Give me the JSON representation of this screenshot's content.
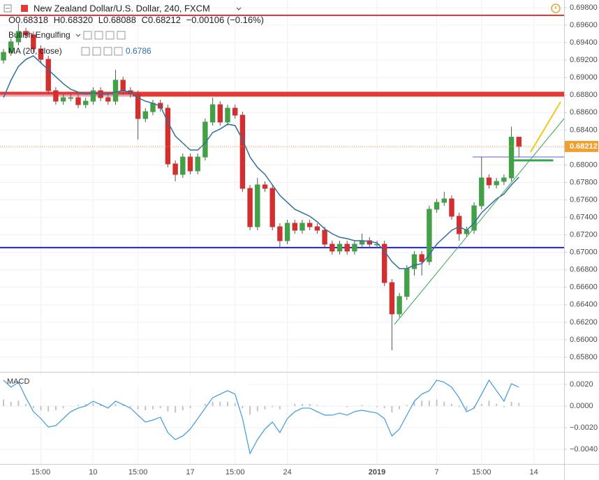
{
  "chart_data": [
    {
      "type": "candlestick",
      "title": "New Zealand Dollar/U.S. Dollar, 240, FXCM",
      "legend_values": [
        "O0.68318",
        "H0.68320",
        "L0.68088",
        "C0.68212",
        "−0.00106 (−0.16%)"
      ],
      "studies": [
        "Bullish Engulfing",
        "MA (20, close)"
      ],
      "up_color": "#43a047",
      "down_color": "#d32f2f",
      "ohlc": [
        [
          0.692,
          0.69329,
          0.6916,
          0.69289
        ],
        [
          0.69289,
          0.69449,
          0.69249,
          0.69409
        ],
        [
          0.69409,
          0.6962,
          0.69369,
          0.69529
        ],
        [
          0.69529,
          0.69569,
          0.69449,
          0.69489
        ],
        [
          0.69489,
          0.69529,
          0.69289,
          0.69329
        ],
        [
          0.69329,
          0.69369,
          0.69169,
          0.69209
        ],
        [
          0.69209,
          0.69249,
          0.6881,
          0.6885
        ],
        [
          0.6885,
          0.6889,
          0.6869,
          0.6873
        ],
        [
          0.6873,
          0.6881,
          0.6869,
          0.6877
        ],
        [
          0.6877,
          0.6881,
          0.6873,
          0.6877
        ],
        [
          0.6877,
          0.6881,
          0.6865,
          0.6869
        ],
        [
          0.6869,
          0.6877,
          0.6865,
          0.6873
        ],
        [
          0.6873,
          0.6889,
          0.6869,
          0.6885
        ],
        [
          0.6885,
          0.6889,
          0.6873,
          0.6877
        ],
        [
          0.6877,
          0.6881,
          0.6869,
          0.6873
        ],
        [
          0.6873,
          0.6909,
          0.6869,
          0.6897
        ],
        [
          0.6897,
          0.6901,
          0.6881,
          0.6885
        ],
        [
          0.6885,
          0.6889,
          0.6877,
          0.6881
        ],
        [
          0.6881,
          0.6885,
          0.6829,
          0.68531
        ],
        [
          0.68531,
          0.6865,
          0.68491,
          0.6861
        ],
        [
          0.6861,
          0.68746,
          0.6857,
          0.68706
        ],
        [
          0.68706,
          0.68746,
          0.6861,
          0.6865
        ],
        [
          0.6865,
          0.6869,
          0.67972,
          0.68012
        ],
        [
          0.68012,
          0.68052,
          0.67812,
          0.67892
        ],
        [
          0.67892,
          0.68131,
          0.67852,
          0.68091
        ],
        [
          0.68091,
          0.68131,
          0.67892,
          0.67932
        ],
        [
          0.67932,
          0.68131,
          0.67892,
          0.68091
        ],
        [
          0.68091,
          0.68531,
          0.68052,
          0.68491
        ],
        [
          0.68491,
          0.6877,
          0.68451,
          0.6869
        ],
        [
          0.6869,
          0.6873,
          0.68451,
          0.68491
        ],
        [
          0.68491,
          0.6869,
          0.68451,
          0.6865
        ],
        [
          0.6865,
          0.6869,
          0.6853,
          0.6857
        ],
        [
          0.6857,
          0.6861,
          0.67692,
          0.67732
        ],
        [
          0.67732,
          0.67772,
          0.67253,
          0.67293
        ],
        [
          0.67293,
          0.67852,
          0.67253,
          0.67772
        ],
        [
          0.67772,
          0.67812,
          0.67692,
          0.67732
        ],
        [
          0.67732,
          0.67772,
          0.67253,
          0.67293
        ],
        [
          0.67293,
          0.67333,
          0.67053,
          0.67133
        ],
        [
          0.67133,
          0.67373,
          0.67093,
          0.67333
        ],
        [
          0.67333,
          0.67373,
          0.67213,
          0.67253
        ],
        [
          0.67253,
          0.67373,
          0.67213,
          0.67333
        ],
        [
          0.67333,
          0.67373,
          0.67253,
          0.67293
        ],
        [
          0.67293,
          0.67333,
          0.67213,
          0.67253
        ],
        [
          0.67253,
          0.67293,
          0.67053,
          0.67093
        ],
        [
          0.67093,
          0.67133,
          0.66974,
          0.67014
        ],
        [
          0.67014,
          0.67133,
          0.66974,
          0.67093
        ],
        [
          0.67093,
          0.67133,
          0.66974,
          0.67014
        ],
        [
          0.67014,
          0.67133,
          0.66974,
          0.67093
        ],
        [
          0.67093,
          0.67213,
          0.67053,
          0.67133
        ],
        [
          0.67133,
          0.67173,
          0.67053,
          0.67093
        ],
        [
          0.67093,
          0.67133,
          0.67053,
          0.67093
        ],
        [
          0.67093,
          0.67133,
          0.66614,
          0.66654
        ],
        [
          0.66654,
          0.66694,
          0.6588,
          0.66295
        ],
        [
          0.66295,
          0.66535,
          0.66255,
          0.66495
        ],
        [
          0.66495,
          0.66854,
          0.66455,
          0.66814
        ],
        [
          0.66814,
          0.67014,
          0.66734,
          0.66974
        ],
        [
          0.66974,
          0.67014,
          0.66734,
          0.66894
        ],
        [
          0.66894,
          0.67533,
          0.66854,
          0.67493
        ],
        [
          0.67493,
          0.67612,
          0.67453,
          0.67572
        ],
        [
          0.67572,
          0.67692,
          0.67532,
          0.67612
        ],
        [
          0.67612,
          0.67652,
          0.67373,
          0.67413
        ],
        [
          0.67413,
          0.67453,
          0.67133,
          0.67213
        ],
        [
          0.67213,
          0.67293,
          0.67173,
          0.67253
        ],
        [
          0.67253,
          0.67573,
          0.67213,
          0.67533
        ],
        [
          0.67533,
          0.68092,
          0.67493,
          0.67852
        ],
        [
          0.67852,
          0.67892,
          0.67732,
          0.67772
        ],
        [
          0.67772,
          0.67852,
          0.67732,
          0.67812
        ],
        [
          0.67812,
          0.67892,
          0.67772,
          0.67852
        ],
        [
          0.67852,
          0.68438,
          0.67812,
          0.68318
        ],
        [
          0.68318,
          0.6832,
          0.68088,
          0.68212
        ]
      ],
      "ma": {
        "color": "#2f6fa0",
        "values": [
          0.6877,
          0.6897,
          0.69129,
          0.69209,
          0.69249,
          0.69169,
          0.69089,
          0.6901,
          0.6893,
          0.68866,
          0.68834,
          0.6881,
          0.68826,
          0.6881,
          0.6881,
          0.68834,
          0.6885,
          0.68834,
          0.6877,
          0.6873,
          0.68706,
          0.68674,
          0.68491,
          0.68331,
          0.68251,
          0.68171,
          0.68171,
          0.68251,
          0.68371,
          0.68411,
          0.68467,
          0.68451,
          0.68291,
          0.68091,
          0.67972,
          0.67892,
          0.67772,
          0.67652,
          0.67572,
          0.67493,
          0.67453,
          0.67413,
          0.67349,
          0.67269,
          0.67213,
          0.67173,
          0.67157,
          0.67133,
          0.67133,
          0.67125,
          0.67109,
          0.67014,
          0.66894,
          0.66814,
          0.66814,
          0.66854,
          0.6687,
          0.66974,
          0.67093,
          0.67173,
          0.67253,
          0.67293,
          0.67253,
          0.67333,
          0.67453,
          0.67533,
          0.67612,
          0.67668,
          0.67772,
          0.6786
        ]
      },
      "levels": [
        {
          "value": 0.69712,
          "color": "#e53935",
          "width": 2
        },
        {
          "value": 0.6881,
          "color": "#e53935",
          "width": 7
        },
        {
          "value": 0.67054,
          "color": "#1a28c0",
          "width": 2
        },
        {
          "value": 0.68091,
          "color": "#6a5acd",
          "width": 1,
          "from": 62.8
        },
        {
          "value": 0.68052,
          "color": "#2eaa4a",
          "width": 3,
          "from": 68.2,
          "to": 73.6
        }
      ],
      "last_price_color": "#f0a030",
      "xlim": [
        -0.47,
        75.05
      ],
      "xticks": [
        {
          "value": 5,
          "label": "15:00"
        },
        {
          "value": 12,
          "label": "10"
        },
        {
          "value": 18,
          "label": "15:00"
        },
        {
          "value": 25,
          "label": "17"
        },
        {
          "value": 31,
          "label": "15:00"
        },
        {
          "value": 38,
          "label": "24"
        },
        {
          "value": 50,
          "label": "2019"
        },
        {
          "value": 58,
          "label": "7"
        },
        {
          "value": 64,
          "label": "15:00"
        },
        {
          "value": 71,
          "label": "14"
        }
      ],
      "ylim": [
        0.65656,
        0.69888
      ],
      "yticks": [
        {
          "value": 0.698,
          "label": "0.69800"
        },
        {
          "value": 0.696,
          "label": "0.69600"
        },
        {
          "value": 0.694,
          "label": "0.69400"
        },
        {
          "value": 0.692,
          "label": "0.69200"
        },
        {
          "value": 0.69,
          "label": "0.69000"
        },
        {
          "value": 0.688,
          "label": "0.68800"
        },
        {
          "value": 0.686,
          "label": "0.68600"
        },
        {
          "value": 0.684,
          "label": "0.68400"
        },
        {
          "value": 0.682,
          "label": "0.68200"
        },
        {
          "value": 0.68,
          "label": "0.68000"
        },
        {
          "value": 0.678,
          "label": "0.67800"
        },
        {
          "value": 0.676,
          "label": "0.67600"
        },
        {
          "value": 0.674,
          "label": "0.67400"
        },
        {
          "value": 0.672,
          "label": "0.67200"
        },
        {
          "value": 0.67,
          "label": "0.67000"
        },
        {
          "value": 0.668,
          "label": "0.66800"
        },
        {
          "value": 0.666,
          "label": "0.66600"
        },
        {
          "value": 0.664,
          "label": "0.66400"
        },
        {
          "value": 0.662,
          "label": "0.66200"
        },
        {
          "value": 0.66,
          "label": "0.66000"
        },
        {
          "value": 0.658,
          "label": "0.65800"
        }
      ],
      "grid": true
    },
    {
      "type": "macd",
      "title": "MACD",
      "macd": {
        "color": "#3c9ae0",
        "values": [
          0.00239,
          0.00174,
          0.00219,
          0.00077,
          -0.00052,
          -0.00116,
          -0.00194,
          -0.00181,
          -0.00116,
          -0.00052,
          -0.00019,
          0,
          0.00045,
          0.00013,
          -0.00019,
          0.00045,
          0.00013,
          -0.00019,
          -0.00084,
          -0.00148,
          -0.00129,
          -0.00103,
          -0.00245,
          -0.0031,
          -0.00277,
          -0.00213,
          -0.00116,
          -0.00019,
          0.00077,
          0.0011,
          0.00142,
          0.0011,
          -0.00116,
          -0.00439,
          -0.0031,
          -0.00213,
          -0.00148,
          -0.00245,
          -0.00116,
          -0.00052,
          -0.00019,
          -0.00019,
          -0.00052,
          -0.00084,
          -0.00084,
          -0.00065,
          -0.00084,
          -0.00052,
          -0.00039,
          -0.00052,
          -0.00065,
          -0.00116,
          -0.00277,
          -0.00213,
          -0.00084,
          0.00045,
          0.0011,
          0.00142,
          0.00239,
          0.00219,
          0.00174,
          0.00077,
          -0.00052,
          -0.00019,
          0.0011,
          0.00239,
          0.00142,
          0.00045,
          0.00206,
          0.00174
        ]
      },
      "histogram": {
        "color": "#c4c4c4",
        "values": [
          0.0006,
          0.0004,
          0.0005,
          0.0002,
          -0.0002,
          -0.0004,
          -0.0005,
          -0.0004,
          -0.0002,
          0,
          0.0001,
          0.0002,
          0.0003,
          0.0002,
          0,
          0.0002,
          0.0001,
          -0.0001,
          -0.0003,
          -0.0004,
          -0.0003,
          -0.0002,
          -0.0005,
          -0.0006,
          -0.0004,
          -0.0002,
          0,
          0.0002,
          0.0004,
          0.0004,
          0.0004,
          0.0003,
          -0.0002,
          -0.0008,
          -0.0005,
          -0.0003,
          -0.0001,
          -0.0003,
          0,
          0.0002,
          0.0002,
          0.0002,
          0.0001,
          0,
          0,
          0,
          -0.0001,
          0,
          0.0001,
          0,
          -0.0001,
          -0.0002,
          -0.0006,
          -0.0003,
          0.0001,
          0.0004,
          0.0005,
          0.0005,
          0.0006,
          0.0004,
          0.0002,
          -0.0001,
          -0.0004,
          -0.0002,
          0.0002,
          0.0005,
          0.0002,
          -0.0001,
          0.0004,
          0.0003
        ]
      },
      "ylim": [
        -0.00535,
        0.0029
      ],
      "yticks": [
        {
          "value": 0.002,
          "label": "0.0020"
        },
        {
          "value": 0,
          "label": "0.0000"
        },
        {
          "value": -0.002,
          "label": "−0.0020"
        },
        {
          "value": -0.004,
          "label": "−0.0040"
        }
      ],
      "grid": true
    }
  ]
}
